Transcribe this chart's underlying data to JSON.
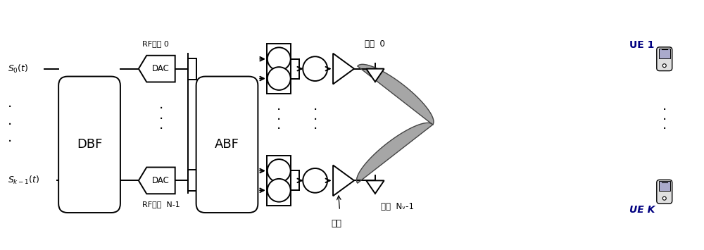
{
  "bg_color": "#ffffff",
  "line_color": "#000000",
  "dbf_label": "DBF",
  "abf_label": "ABF",
  "dac_label": "DAC",
  "rf_channel_0": "RF通道 0",
  "rf_channel_n": "RF通道  N-1",
  "antenna_0": "天线  0",
  "antenna_n": "天线  Nᵥ-1",
  "pa_label": "功放",
  "ue1_label": "UE 1",
  "uek_label": "UE K",
  "fig_width": 10.0,
  "fig_height": 3.55,
  "s0_label": "S₀(t)",
  "sk_label": "Sₖ₋₁(t)"
}
